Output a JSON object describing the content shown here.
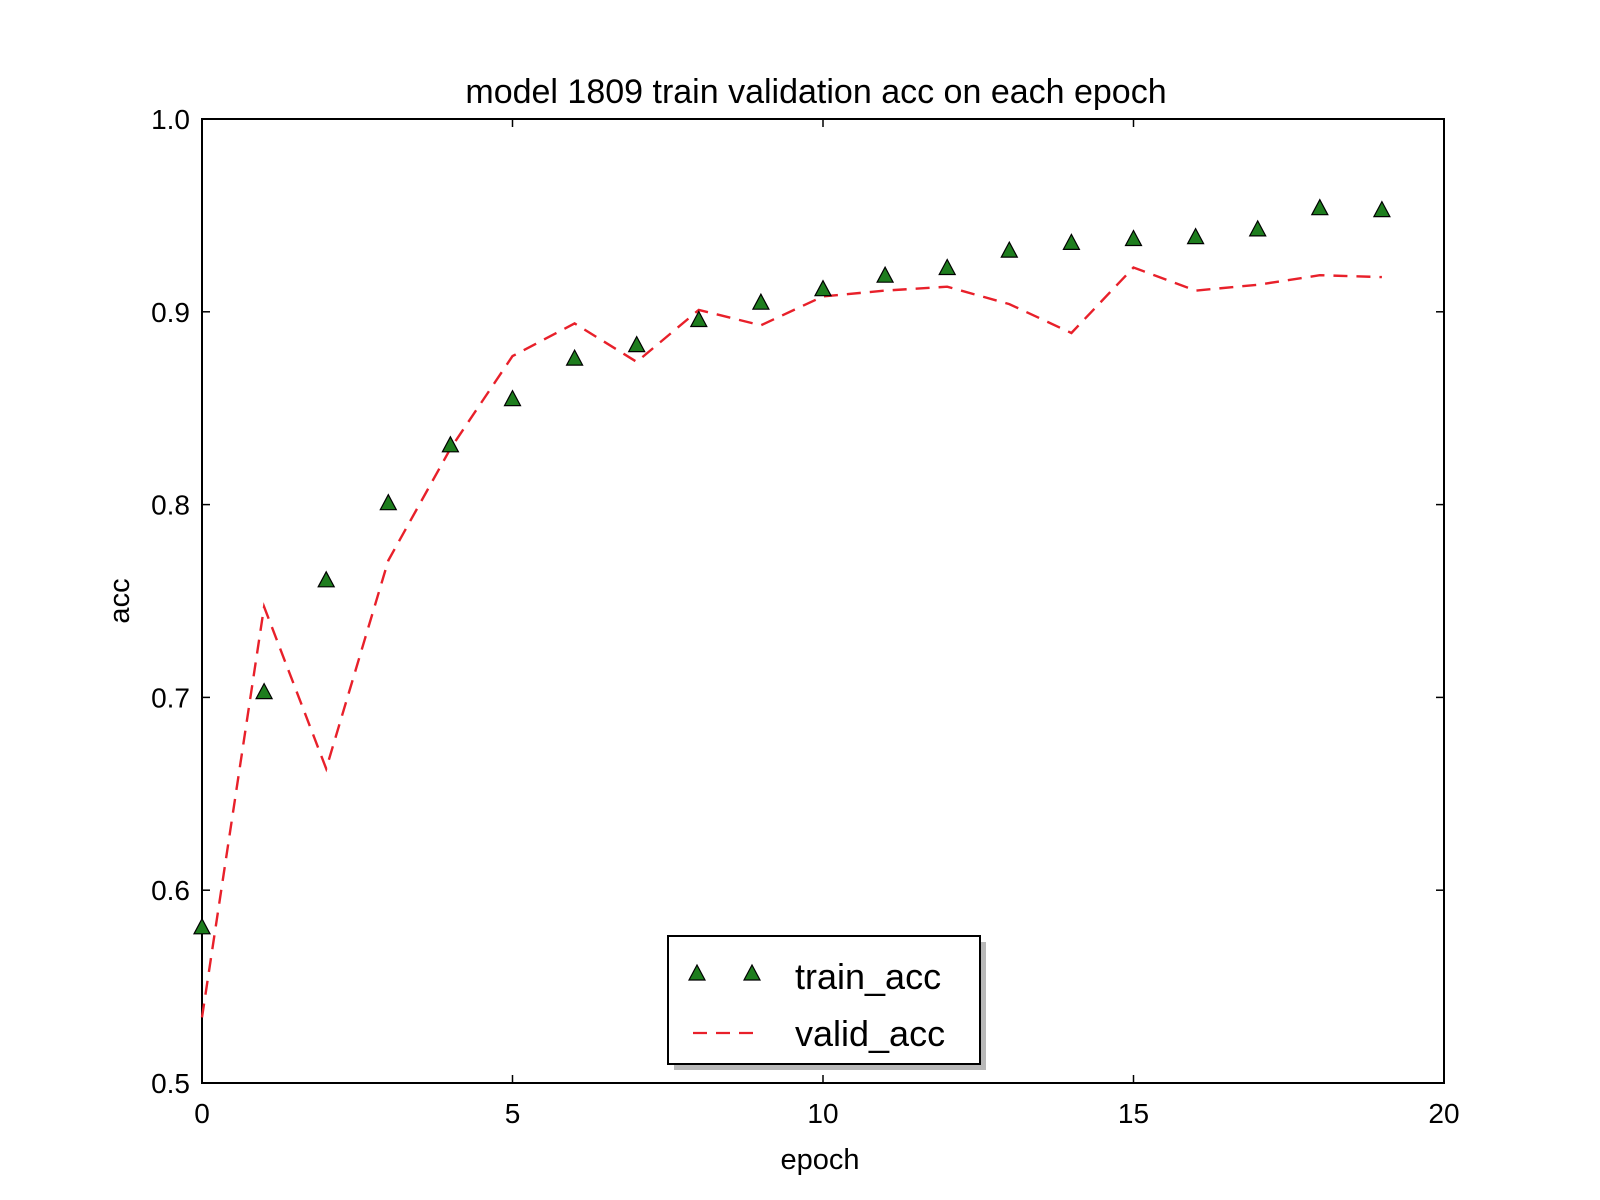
{
  "chart_data": {
    "type": "line",
    "title": "model 1809 train validation acc on each epoch",
    "xlabel": "epoch",
    "ylabel": "acc",
    "xlim": [
      0,
      20
    ],
    "ylim": [
      0.5,
      1.0
    ],
    "x_ticks": [
      "0",
      "5",
      "10",
      "15",
      "20"
    ],
    "y_ticks": [
      "0.5",
      "0.6",
      "0.7",
      "0.8",
      "0.9",
      "1.0"
    ],
    "grid": false,
    "legend_position": "bottom-center",
    "x": [
      0,
      1,
      2,
      3,
      4,
      5,
      6,
      7,
      8,
      9,
      10,
      11,
      12,
      13,
      14,
      15,
      16,
      17,
      18,
      19
    ],
    "series": [
      {
        "name": "train_acc",
        "style": "triangle-markers",
        "color": "#1e7d1e",
        "values": [
          0.581,
          0.703,
          0.761,
          0.801,
          0.831,
          0.855,
          0.876,
          0.883,
          0.896,
          0.905,
          0.912,
          0.919,
          0.923,
          0.932,
          0.936,
          0.938,
          0.939,
          0.943,
          0.954,
          0.953
        ]
      },
      {
        "name": "valid_acc",
        "style": "dashed-line",
        "color": "#e8202a",
        "values": [
          0.534,
          0.747,
          0.663,
          0.771,
          0.829,
          0.877,
          0.894,
          0.874,
          0.901,
          0.893,
          0.908,
          0.911,
          0.913,
          0.904,
          0.889,
          0.923,
          0.911,
          0.914,
          0.919,
          0.918
        ]
      }
    ]
  }
}
